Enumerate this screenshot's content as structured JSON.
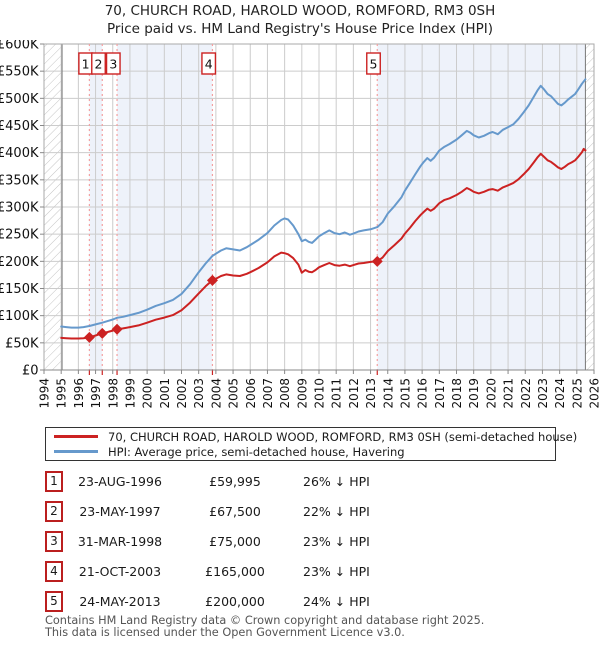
{
  "title": "70, CHURCH ROAD, HAROLD WOOD, ROMFORD, RM3 0SH",
  "subtitle": "Price paid vs. HM Land Registry's House Price Index (HPI)",
  "legend": {
    "items": [
      {
        "name": "price-paid",
        "label": "70, CHURCH ROAD, HAROLD WOOD, ROMFORD, RM3 0SH (semi-detached house)",
        "color": "#cc2222"
      },
      {
        "name": "hpi",
        "label": "HPI: Average price, semi-detached house, Havering",
        "color": "#6699cc"
      }
    ]
  },
  "transactions": [
    {
      "num": "1",
      "date": "23-AUG-1996",
      "price": "£59,995",
      "hpi_delta": "26% ↓ HPI"
    },
    {
      "num": "2",
      "date": "23-MAY-1997",
      "price": "£67,500",
      "hpi_delta": "22% ↓ HPI"
    },
    {
      "num": "3",
      "date": "31-MAR-1998",
      "price": "£75,000",
      "hpi_delta": "23% ↓ HPI"
    },
    {
      "num": "4",
      "date": "21-OCT-2003",
      "price": "£165,000",
      "hpi_delta": "23% ↓ HPI"
    },
    {
      "num": "5",
      "date": "24-MAY-2013",
      "price": "£200,000",
      "hpi_delta": "24% ↓ HPI"
    }
  ],
  "footer": {
    "line1": "Contains HM Land Registry data © Crown copyright and database right 2025.",
    "line2": "This data is licensed under the Open Government Licence v3.0."
  },
  "chart_data": {
    "type": "line",
    "title": "70, CHURCH ROAD, HAROLD WOOD, ROMFORD, RM3 0SH",
    "xlabel": "",
    "ylabel": "",
    "xlim": [
      1994,
      2026
    ],
    "ylim": [
      0,
      600000
    ],
    "grid": true,
    "legend_position": "bottom",
    "value_unit": "GBP thousands",
    "y_ticks": [
      "£0",
      "£50K",
      "£100K",
      "£150K",
      "£200K",
      "£250K",
      "£300K",
      "£350K",
      "£400K",
      "£450K",
      "£500K",
      "£550K",
      "£600K"
    ],
    "x_ticks": [
      1994,
      1995,
      1996,
      1997,
      1998,
      1999,
      2000,
      2001,
      2002,
      2003,
      2004,
      2005,
      2006,
      2007,
      2008,
      2009,
      2010,
      2011,
      2012,
      2013,
      2014,
      2015,
      2016,
      2017,
      2018,
      2019,
      2020,
      2021,
      2022,
      2023,
      2024,
      2025,
      2026
    ],
    "hpi_start_year": 1995.05,
    "data_end_year": 2025.5,
    "colors": {
      "price": "#cc2222",
      "hpi": "#6699cc",
      "band": "#eef2fa",
      "grid": "#cccccc",
      "dashed": "#f4a0a0",
      "hatch": "#c4c4c4",
      "border": "#aaaaaa",
      "boundary": "#777777",
      "tick": "#888888",
      "text": "#111111"
    },
    "ownership_bands": [
      [
        1996.64,
        1997.39
      ],
      [
        1998.25,
        2003.8
      ],
      [
        2013.39,
        2025.5
      ]
    ],
    "sales": [
      {
        "label": "1",
        "year": 1996.64,
        "date": "23-AUG-1996",
        "price": 59995
      },
      {
        "label": "2",
        "year": 1997.39,
        "date": "23-MAY-1997",
        "price": 67500
      },
      {
        "label": "3",
        "year": 1998.25,
        "date": "31-MAR-1998",
        "price": 75000
      },
      {
        "label": "4",
        "year": 2003.8,
        "date": "21-OCT-2003",
        "price": 165000
      },
      {
        "label": "5",
        "year": 2013.39,
        "date": "24-MAY-2013",
        "price": 200000
      }
    ],
    "series": [
      {
        "name": "hpi",
        "color": "#6699cc",
        "points": [
          [
            1995.0,
            80
          ],
          [
            1995.3,
            79
          ],
          [
            1995.6,
            78
          ],
          [
            1996.0,
            78
          ],
          [
            1996.3,
            79
          ],
          [
            1996.64,
            81
          ],
          [
            1997.0,
            84
          ],
          [
            1997.39,
            87
          ],
          [
            1997.7,
            90
          ],
          [
            1998.0,
            93
          ],
          [
            1998.25,
            96
          ],
          [
            1998.6,
            98
          ],
          [
            1999.0,
            101
          ],
          [
            1999.5,
            105
          ],
          [
            2000.0,
            111
          ],
          [
            2000.5,
            118
          ],
          [
            2001.0,
            123
          ],
          [
            2001.5,
            129
          ],
          [
            2002.0,
            140
          ],
          [
            2002.5,
            158
          ],
          [
            2003.0,
            180
          ],
          [
            2003.4,
            196
          ],
          [
            2003.8,
            210
          ],
          [
            2004.0,
            214
          ],
          [
            2004.3,
            220
          ],
          [
            2004.6,
            224
          ],
          [
            2005.0,
            222
          ],
          [
            2005.4,
            220
          ],
          [
            2005.8,
            226
          ],
          [
            2006.0,
            230
          ],
          [
            2006.5,
            240
          ],
          [
            2007.0,
            252
          ],
          [
            2007.4,
            266
          ],
          [
            2007.8,
            276
          ],
          [
            2008.0,
            279
          ],
          [
            2008.2,
            277
          ],
          [
            2008.5,
            266
          ],
          [
            2008.8,
            250
          ],
          [
            2009.0,
            237
          ],
          [
            2009.2,
            240
          ],
          [
            2009.4,
            236
          ],
          [
            2009.6,
            234
          ],
          [
            2009.8,
            240
          ],
          [
            2010.0,
            246
          ],
          [
            2010.3,
            252
          ],
          [
            2010.6,
            257
          ],
          [
            2010.9,
            252
          ],
          [
            2011.2,
            250
          ],
          [
            2011.5,
            253
          ],
          [
            2011.8,
            249
          ],
          [
            2012.0,
            251
          ],
          [
            2012.3,
            255
          ],
          [
            2012.6,
            257
          ],
          [
            2013.0,
            259
          ],
          [
            2013.39,
            263
          ],
          [
            2013.7,
            272
          ],
          [
            2014.0,
            288
          ],
          [
            2014.4,
            302
          ],
          [
            2014.8,
            318
          ],
          [
            2015.0,
            330
          ],
          [
            2015.3,
            345
          ],
          [
            2015.6,
            360
          ],
          [
            2015.9,
            375
          ],
          [
            2016.1,
            383
          ],
          [
            2016.3,
            390
          ],
          [
            2016.5,
            385
          ],
          [
            2016.7,
            391
          ],
          [
            2017.0,
            404
          ],
          [
            2017.3,
            411
          ],
          [
            2017.6,
            416
          ],
          [
            2018.0,
            424
          ],
          [
            2018.3,
            432
          ],
          [
            2018.6,
            440
          ],
          [
            2018.8,
            437
          ],
          [
            2019.0,
            432
          ],
          [
            2019.3,
            428
          ],
          [
            2019.6,
            431
          ],
          [
            2019.9,
            436
          ],
          [
            2020.1,
            438
          ],
          [
            2020.4,
            434
          ],
          [
            2020.7,
            442
          ],
          [
            2021.0,
            447
          ],
          [
            2021.3,
            452
          ],
          [
            2021.6,
            462
          ],
          [
            2021.9,
            474
          ],
          [
            2022.2,
            487
          ],
          [
            2022.5,
            503
          ],
          [
            2022.7,
            514
          ],
          [
            2022.9,
            523
          ],
          [
            2023.1,
            516
          ],
          [
            2023.3,
            508
          ],
          [
            2023.5,
            504
          ],
          [
            2023.7,
            497
          ],
          [
            2023.9,
            490
          ],
          [
            2024.1,
            487
          ],
          [
            2024.3,
            492
          ],
          [
            2024.5,
            498
          ],
          [
            2024.7,
            503
          ],
          [
            2024.9,
            508
          ],
          [
            2025.1,
            517
          ],
          [
            2025.3,
            527
          ],
          [
            2025.5,
            535
          ]
        ]
      },
      {
        "name": "price_paid",
        "color": "#cc2222",
        "points": [
          [
            1995.0,
            59
          ],
          [
            1995.3,
            58.5
          ],
          [
            1995.6,
            58
          ],
          [
            1996.0,
            58
          ],
          [
            1996.3,
            58.5
          ],
          [
            1996.64,
            60
          ],
          [
            1997.0,
            63.5
          ],
          [
            1997.39,
            67.5
          ],
          [
            1997.7,
            70
          ],
          [
            1998.0,
            72.5
          ],
          [
            1998.25,
            75
          ],
          [
            1998.6,
            76.5
          ],
          [
            1999.0,
            79
          ],
          [
            1999.5,
            82
          ],
          [
            2000.0,
            87
          ],
          [
            2000.5,
            92.5
          ],
          [
            2001.0,
            96.5
          ],
          [
            2001.5,
            101
          ],
          [
            2002.0,
            110
          ],
          [
            2002.5,
            124
          ],
          [
            2003.0,
            141
          ],
          [
            2003.4,
            154
          ],
          [
            2003.8,
            165
          ],
          [
            2004.0,
            168
          ],
          [
            2004.3,
            173
          ],
          [
            2004.6,
            176
          ],
          [
            2005.0,
            174
          ],
          [
            2005.4,
            173
          ],
          [
            2005.8,
            177
          ],
          [
            2006.0,
            180
          ],
          [
            2006.5,
            188
          ],
          [
            2007.0,
            198
          ],
          [
            2007.4,
            209
          ],
          [
            2007.8,
            216
          ],
          [
            2008.0,
            215
          ],
          [
            2008.2,
            213
          ],
          [
            2008.5,
            206
          ],
          [
            2008.8,
            194
          ],
          [
            2009.0,
            179
          ],
          [
            2009.2,
            184
          ],
          [
            2009.4,
            181
          ],
          [
            2009.6,
            180
          ],
          [
            2009.8,
            184
          ],
          [
            2010.0,
            189
          ],
          [
            2010.3,
            193
          ],
          [
            2010.6,
            197
          ],
          [
            2010.9,
            193
          ],
          [
            2011.2,
            192
          ],
          [
            2011.5,
            194
          ],
          [
            2011.8,
            191
          ],
          [
            2012.0,
            193
          ],
          [
            2012.3,
            196
          ],
          [
            2012.6,
            197
          ],
          [
            2013.0,
            199
          ],
          [
            2013.39,
            200
          ],
          [
            2013.7,
            207
          ],
          [
            2014.0,
            219
          ],
          [
            2014.4,
            230
          ],
          [
            2014.8,
            242
          ],
          [
            2015.0,
            251
          ],
          [
            2015.3,
            262
          ],
          [
            2015.6,
            274
          ],
          [
            2015.9,
            285
          ],
          [
            2016.1,
            291
          ],
          [
            2016.3,
            297
          ],
          [
            2016.5,
            293
          ],
          [
            2016.7,
            297
          ],
          [
            2017.0,
            307
          ],
          [
            2017.3,
            313
          ],
          [
            2017.6,
            316
          ],
          [
            2018.0,
            322
          ],
          [
            2018.3,
            328
          ],
          [
            2018.6,
            335
          ],
          [
            2018.8,
            332
          ],
          [
            2019.0,
            328
          ],
          [
            2019.3,
            325
          ],
          [
            2019.6,
            328
          ],
          [
            2019.9,
            332
          ],
          [
            2020.1,
            333
          ],
          [
            2020.4,
            330
          ],
          [
            2020.7,
            336
          ],
          [
            2021.0,
            340
          ],
          [
            2021.3,
            344
          ],
          [
            2021.6,
            351
          ],
          [
            2021.9,
            360
          ],
          [
            2022.2,
            370
          ],
          [
            2022.5,
            382
          ],
          [
            2022.7,
            391
          ],
          [
            2022.9,
            398
          ],
          [
            2023.1,
            392
          ],
          [
            2023.3,
            386
          ],
          [
            2023.5,
            383
          ],
          [
            2023.7,
            378
          ],
          [
            2023.9,
            373
          ],
          [
            2024.1,
            370
          ],
          [
            2024.3,
            374
          ],
          [
            2024.5,
            379
          ],
          [
            2024.7,
            382
          ],
          [
            2024.9,
            386
          ],
          [
            2025.1,
            393
          ],
          [
            2025.3,
            401
          ],
          [
            2025.4,
            407
          ],
          [
            2025.5,
            404
          ]
        ]
      }
    ]
  }
}
